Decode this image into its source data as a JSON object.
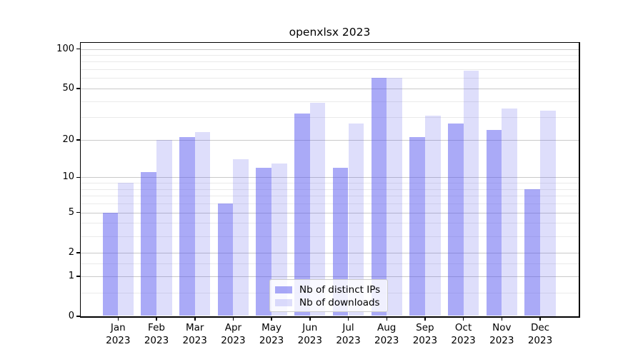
{
  "chart_data": {
    "type": "bar",
    "title": "openxlsx 2023",
    "categories": [
      "Jan",
      "Feb",
      "Mar",
      "Apr",
      "May",
      "Jun",
      "Jul",
      "Aug",
      "Sep",
      "Oct",
      "Nov",
      "Dec"
    ],
    "category_year": "2023",
    "series": [
      {
        "name": "Nb of distinct IPs",
        "color": "rgba(85,85,240,0.50)",
        "values": [
          5,
          11,
          21,
          6,
          12,
          32,
          12,
          60,
          21,
          27,
          24,
          8
        ]
      },
      {
        "name": "Nb of downloads",
        "color": "rgba(90,90,235,0.20)",
        "values": [
          9,
          20,
          23,
          14,
          13,
          39,
          27,
          60,
          31,
          68,
          35,
          34
        ]
      }
    ],
    "y_ticks": [
      0,
      1,
      2,
      5,
      10,
      20,
      50,
      100
    ],
    "y_minor_gridlines": [
      0.5,
      1.5,
      3,
      4,
      6,
      7,
      8,
      9,
      30,
      40,
      60,
      70,
      80,
      90
    ],
    "ylim": [
      0,
      100
    ],
    "y_scale": "log1p",
    "xlabel": "",
    "ylabel": "",
    "grid": "on",
    "legend_position": "bottom-center"
  }
}
